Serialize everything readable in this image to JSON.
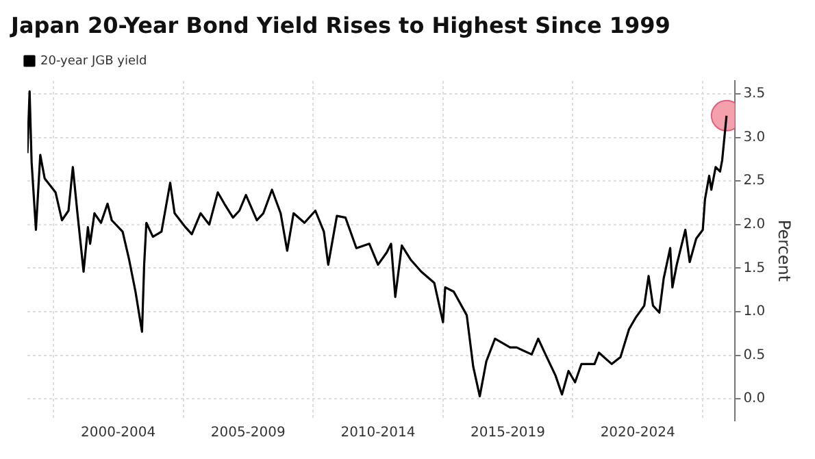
{
  "chart_data": {
    "type": "line",
    "title": "Japan 20-Year Bond Yield Rises to Highest Since 1999",
    "ylabel": "Percent",
    "x": [
      "1999-01",
      "1999-02",
      "1999-03",
      "1999-05",
      "1999-07",
      "1999-09",
      "2000-02",
      "2000-05",
      "2000-08",
      "2000-10",
      "2000-12",
      "2001-03",
      "2001-05",
      "2001-06",
      "2001-08",
      "2001-11",
      "2002-02",
      "2002-04",
      "2002-09",
      "2002-12",
      "2003-03",
      "2003-06",
      "2003-07",
      "2003-08",
      "2003-11",
      "2004-03",
      "2004-07",
      "2004-09",
      "2005-02",
      "2005-05",
      "2005-09",
      "2006-01",
      "2006-05",
      "2006-08",
      "2006-12",
      "2007-03",
      "2007-06",
      "2007-11",
      "2008-02",
      "2008-06",
      "2008-10",
      "2009-01",
      "2009-04",
      "2009-09",
      "2010-02",
      "2010-06",
      "2010-08",
      "2010-12",
      "2011-04",
      "2011-09",
      "2012-03",
      "2012-07",
      "2012-11",
      "2013-01",
      "2013-03",
      "2013-06",
      "2013-10",
      "2014-03",
      "2014-09",
      "2015-01",
      "2015-02",
      "2015-06",
      "2015-12",
      "2016-03",
      "2016-06",
      "2016-09",
      "2017-01",
      "2017-08",
      "2017-11",
      "2018-06",
      "2018-09",
      "2018-12",
      "2019-05",
      "2019-08",
      "2019-11",
      "2020-02",
      "2020-05",
      "2020-11",
      "2021-01",
      "2021-07",
      "2021-11",
      "2022-03",
      "2022-06",
      "2022-10",
      "2022-12",
      "2023-02",
      "2023-05",
      "2023-07",
      "2023-10",
      "2023-11",
      "2024-01",
      "2024-05",
      "2024-07",
      "2024-10",
      "2025-01",
      "2025-02",
      "2025-04",
      "2025-05",
      "2025-07",
      "2025-09",
      "2025-10",
      "2025-12"
    ],
    "series": [
      {
        "name": "20-year JGB yield",
        "color": "#000000",
        "values": [
          2.82,
          3.53,
          2.72,
          1.94,
          2.8,
          2.53,
          2.37,
          2.05,
          2.16,
          2.66,
          2.16,
          1.46,
          1.97,
          1.78,
          2.13,
          2.02,
          2.24,
          2.05,
          1.92,
          1.6,
          1.23,
          0.77,
          1.54,
          2.02,
          1.86,
          1.92,
          2.48,
          2.13,
          1.97,
          1.89,
          2.13,
          2.0,
          2.37,
          2.24,
          2.08,
          2.16,
          2.34,
          2.05,
          2.13,
          2.4,
          2.13,
          1.7,
          2.13,
          2.02,
          2.16,
          1.92,
          1.54,
          2.1,
          2.08,
          1.73,
          1.78,
          1.54,
          1.68,
          1.78,
          1.17,
          1.76,
          1.6,
          1.46,
          1.33,
          0.88,
          1.28,
          1.23,
          0.96,
          0.37,
          0.03,
          0.43,
          0.69,
          0.59,
          0.59,
          0.51,
          0.69,
          0.53,
          0.27,
          0.05,
          0.32,
          0.19,
          0.4,
          0.4,
          0.53,
          0.4,
          0.48,
          0.8,
          0.93,
          1.07,
          1.41,
          1.07,
          0.99,
          1.38,
          1.73,
          1.28,
          1.54,
          1.94,
          1.57,
          1.84,
          1.94,
          2.29,
          2.56,
          2.4,
          2.66,
          2.61,
          2.74,
          3.25
        ]
      },
      {
        "type": "scatter",
        "x": [
          "2025-12"
        ],
        "values": [
          3.25
        ],
        "color": "#f28a99",
        "marker": "circle"
      }
    ],
    "xlim": [
      "1999",
      "2026-04"
    ],
    "xticks": [
      {
        "value": "2000",
        "label": null
      },
      {
        "value": "2002-07",
        "label": "2000-2004"
      },
      {
        "value": "2005",
        "label": null
      },
      {
        "value": "2007-07",
        "label": "2005-2009"
      },
      {
        "value": "2010",
        "label": null
      },
      {
        "value": "2012-07",
        "label": "2010-2014"
      },
      {
        "value": "2015",
        "label": null
      },
      {
        "value": "2017-07",
        "label": "2015-2019"
      },
      {
        "value": "2020",
        "label": null
      },
      {
        "value": "2022-07",
        "label": "2020-2024"
      },
      {
        "value": "2025",
        "label": null
      }
    ],
    "ylim": [
      -0.25,
      3.65
    ],
    "yticks": [
      {
        "value": 0,
        "label": "0.0"
      },
      {
        "value": 0.5,
        "label": "0.5"
      },
      {
        "value": 1,
        "label": "1.0"
      },
      {
        "value": 1.5,
        "label": "1.5"
      },
      {
        "value": 2,
        "label": "2.0"
      },
      {
        "value": 2.5,
        "label": "2.5"
      },
      {
        "value": 3,
        "label": "3.0"
      },
      {
        "value": 3.5,
        "label": "3.5"
      }
    ],
    "grid": true,
    "legend": "top left",
    "marker": "none",
    "line_style": "solid"
  }
}
